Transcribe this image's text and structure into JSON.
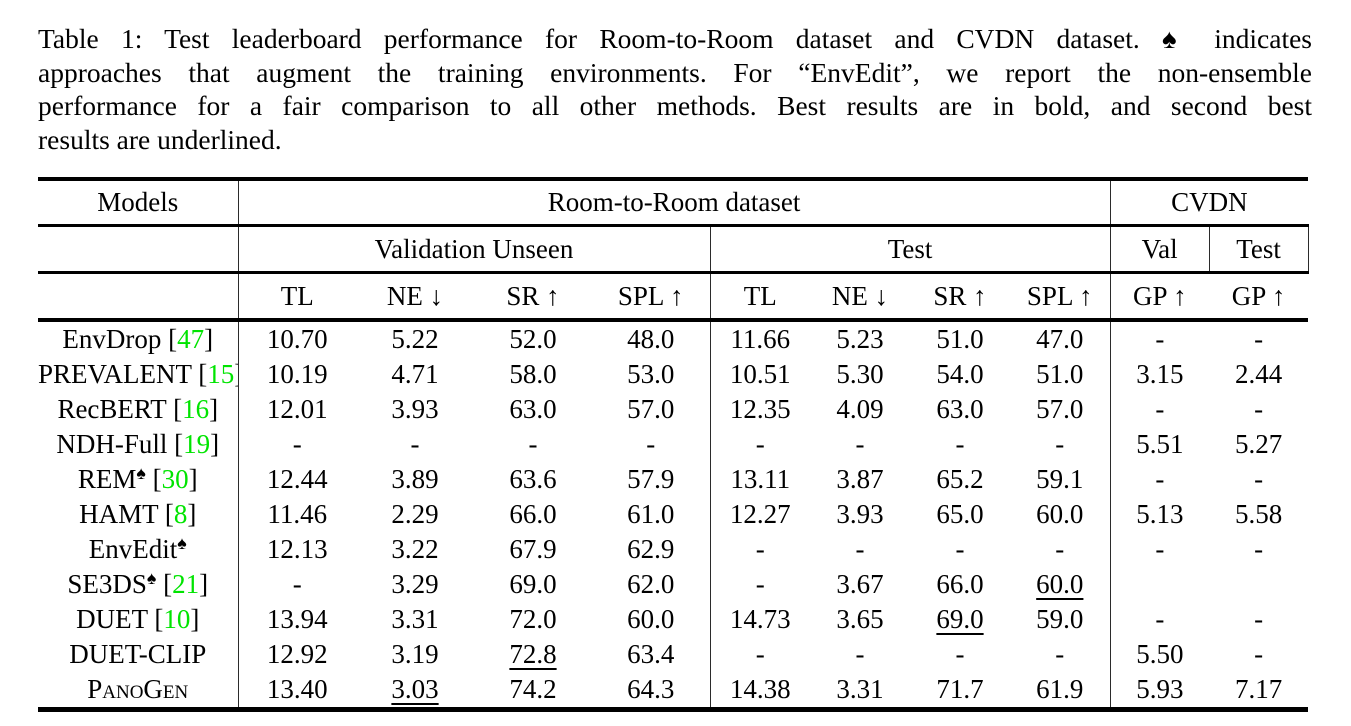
{
  "colors": {
    "citation_green": "#00E400",
    "text_black": "#000000",
    "background": "#FFFFFF"
  },
  "symbols": {
    "spade": "♠"
  },
  "caption": {
    "lines": [
      "Table 1: Test leaderboard performance for Room-to-Room dataset and CVDN dataset. ♠ indicates",
      "approaches that augment the training environments. For “EnvEdit”, we report the non-ensemble",
      "performance for a fair comparison to all other methods. Best results are in bold, and second best",
      "results are underlined."
    ]
  },
  "table": {
    "header": {
      "models": "Models",
      "room_to_room": "Room-to-Room dataset",
      "cvdn": "CVDN",
      "validation_unseen": "Validation Unseen",
      "test": "Test",
      "cvdn_val": "Val",
      "cvdn_test": "Test",
      "metrics": [
        "TL",
        "NE ↓",
        "SR ↑",
        "SPL ↑",
        "TL",
        "NE ↓",
        "SR ↑",
        "SPL ↑",
        "GP ↑",
        "GP ↑"
      ]
    },
    "rows": [
      {
        "model": {
          "name": "EnvDrop",
          "cite": "47"
        },
        "cells": [
          "10.70",
          "5.22",
          "52.0",
          "48.0",
          "11.66",
          "5.23",
          "51.0",
          "47.0",
          "-",
          "-"
        ]
      },
      {
        "model": {
          "name": "PREVALENT",
          "cite": "15"
        },
        "cells": [
          "10.19",
          "4.71",
          "58.0",
          "53.0",
          "10.51",
          "5.30",
          "54.0",
          "51.0",
          "3.15",
          "2.44"
        ]
      },
      {
        "model": {
          "name": "RecBERT",
          "cite": "16"
        },
        "cells": [
          "12.01",
          "3.93",
          "63.0",
          "57.0",
          "12.35",
          "4.09",
          "63.0",
          "57.0",
          "-",
          "-"
        ]
      },
      {
        "model": {
          "name": "NDH-Full",
          "cite": "19"
        },
        "cells": [
          "-",
          "-",
          "-",
          "-",
          "-",
          "-",
          "-",
          "-",
          "5.51",
          "5.27"
        ]
      },
      {
        "model": {
          "name": "REM",
          "spade": true,
          "cite": "30"
        },
        "cells": [
          "12.44",
          "3.89",
          "63.6",
          "57.9",
          "13.11",
          "3.87",
          "65.2",
          "59.1",
          "-",
          "-"
        ]
      },
      {
        "model": {
          "name": "HAMT",
          "cite": "8"
        },
        "cells": [
          "11.46",
          {
            "v": "2.29",
            "b": true
          },
          "66.0",
          "61.0",
          "12.27",
          "3.93",
          "65.0",
          "60.0",
          "5.13",
          "5.58"
        ]
      },
      {
        "model": {
          "name": "EnvEdit",
          "spade": true
        },
        "cells": [
          "12.13",
          "3.22",
          "67.9",
          "62.9",
          "-",
          "-",
          "-",
          "-",
          "-",
          "-"
        ]
      },
      {
        "model": {
          "name": "SE3DS",
          "spade": true,
          "cite": "21"
        },
        "cells": [
          "-",
          "3.29",
          "69.0",
          "62.0",
          "-",
          "3.67",
          "66.0",
          {
            "v": "60.0",
            "u": true
          },
          "",
          ""
        ]
      },
      {
        "model": {
          "name": "DUET",
          "cite": "10"
        },
        "cells": [
          "13.94",
          "3.31",
          "72.0",
          "60.0",
          "14.73",
          "3.65",
          {
            "v": "69.0",
            "u": true
          },
          "59.0",
          "-",
          "-"
        ]
      },
      {
        "model": {
          "name": "DUET-CLIP"
        },
        "cells": [
          "12.92",
          "3.19",
          {
            "v": "72.8",
            "u": true
          },
          "63.4",
          "-",
          "-",
          "-",
          "-",
          "5.50",
          "-"
        ]
      },
      {
        "model": {
          "name": "PanoGen",
          "smallcaps": true
        },
        "cells": [
          "13.40",
          {
            "v": "3.03",
            "u": true
          },
          {
            "v": "74.2",
            "b": true
          },
          {
            "v": "64.3",
            "b": true
          },
          "14.38",
          {
            "v": "3.31",
            "b": true
          },
          {
            "v": "71.7",
            "b": true
          },
          {
            "v": "61.9",
            "b": true
          },
          {
            "v": "5.93",
            "b": true
          },
          {
            "v": "7.17",
            "b": true
          }
        ]
      }
    ]
  }
}
